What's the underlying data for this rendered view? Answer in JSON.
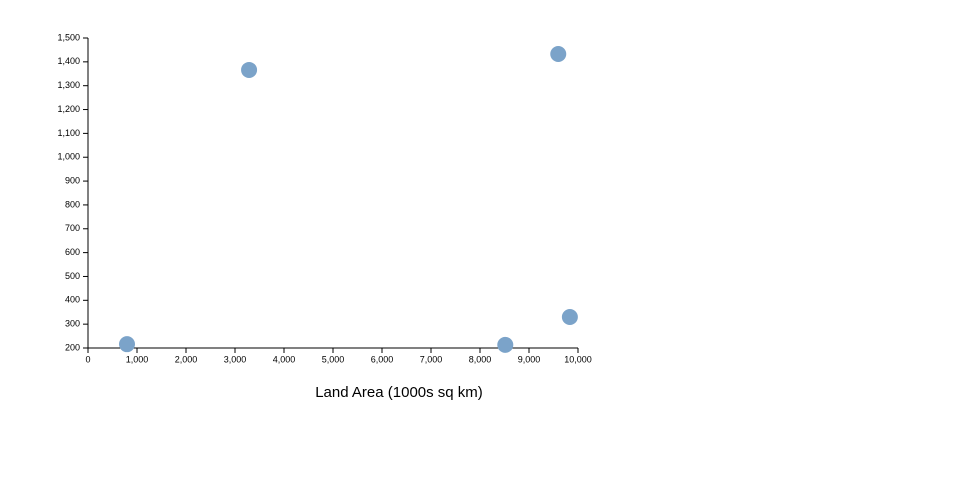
{
  "chart_data": {
    "type": "scatter",
    "x_label": "Land Area (1000s sq km)",
    "x": [
      796,
      3287,
      9597,
      9834,
      8516
    ],
    "values": [
      216,
      1366,
      1433,
      330,
      213
    ],
    "color": "#7ba3c9",
    "xlim": [
      0,
      10000
    ],
    "xticks": [
      0,
      {
        "value": 1000,
        "label": "1,000"
      },
      {
        "value": 2000,
        "label": "2,000"
      },
      {
        "value": 3000,
        "label": "3,000"
      },
      {
        "value": 4000,
        "label": "4,000"
      },
      {
        "value": 5000,
        "label": "5,000"
      },
      {
        "value": 6000,
        "label": "6,000"
      },
      {
        "value": 7000,
        "label": "7,000"
      },
      {
        "value": 8000,
        "label": "8,000"
      },
      {
        "value": 9000,
        "label": "9,000"
      },
      {
        "value": 10000,
        "label": "10,000"
      }
    ],
    "ylim": [
      200,
      1500
    ],
    "yticks": [
      200,
      300,
      400,
      500,
      600,
      700,
      800,
      900,
      {
        "value": 1000,
        "label": "1,000"
      },
      {
        "value": 1100,
        "label": "1,100"
      },
      {
        "value": 1200,
        "label": "1,200"
      },
      {
        "value": 1300,
        "label": "1,300"
      },
      {
        "value": 1400,
        "label": "1,400"
      },
      {
        "value": 1500,
        "label": "1,500"
      }
    ]
  }
}
